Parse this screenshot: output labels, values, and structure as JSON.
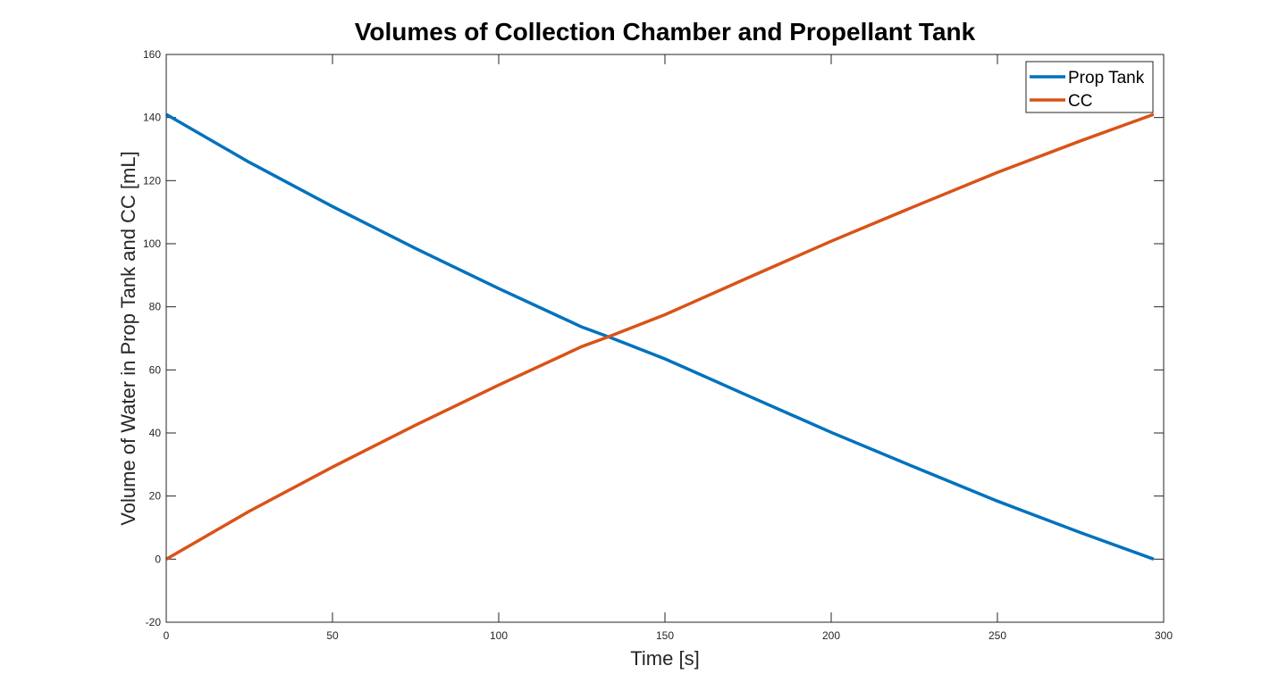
{
  "chart_data": {
    "type": "line",
    "title": "Volumes of Collection Chamber and Propellant Tank",
    "xlabel": "Time [s]",
    "ylabel": "Volume of Water in Prop Tank and CC [mL]",
    "xlim": [
      0,
      300
    ],
    "ylim": [
      -20,
      160
    ],
    "xticks": [
      0,
      50,
      100,
      150,
      200,
      250,
      300
    ],
    "yticks": [
      -20,
      0,
      20,
      40,
      60,
      80,
      100,
      120,
      140,
      160
    ],
    "grid": false,
    "legend_position": "top-right",
    "series": [
      {
        "name": "Prop Tank",
        "color": "#0072BD",
        "x": [
          0,
          25,
          50,
          75,
          100,
          125,
          133,
          150,
          175,
          200,
          225,
          250,
          275,
          297
        ],
        "y": [
          141,
          125.8,
          111.8,
          98.5,
          85.8,
          73.6,
          70.5,
          63.5,
          51.8,
          40.2,
          29.2,
          18.4,
          8.4,
          0
        ]
      },
      {
        "name": "CC",
        "color": "#D95319",
        "x": [
          0,
          25,
          50,
          75,
          100,
          125,
          133,
          150,
          175,
          200,
          225,
          250,
          275,
          297
        ],
        "y": [
          0,
          15.2,
          29.2,
          42.5,
          55.2,
          67.4,
          70.5,
          77.5,
          89.2,
          100.8,
          111.8,
          122.6,
          132.6,
          141
        ]
      }
    ]
  }
}
